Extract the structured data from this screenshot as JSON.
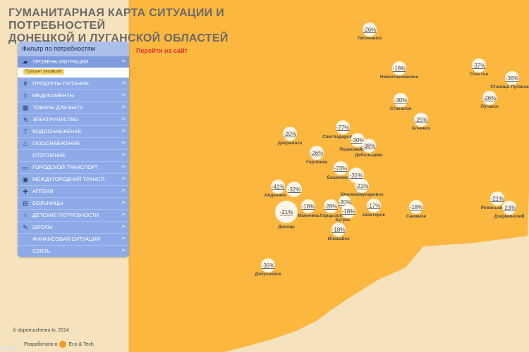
{
  "title": {
    "line1": "ГУМАНИТАРНАЯ КАРТА СИТУАЦИИ И ПОТРЕБНОСТЕЙ",
    "line2": "ДОНЕЦКОЙ И ЛУГАНСКОЙ ОБЛАСТЕЙ"
  },
  "goto_site": "Перейти на сайт",
  "filter": {
    "header": "Фильтр по потребностям",
    "selected_chip": "Процент уехавших",
    "items": [
      {
        "label": "УРОВЕНЬ МИГРАЦИИ",
        "icon": "suitcase-icon",
        "glyph": "▰"
      },
      {
        "label": "ПРОДУКТЫ ПИТАНИЯ",
        "icon": "food-icon",
        "glyph": "⚱"
      },
      {
        "label": "МЕДИКАМЕНТЫ",
        "icon": "medicine-icon",
        "glyph": "⚕"
      },
      {
        "label": "ТОВАРЫ ДЛЯ БЫТА",
        "icon": "household-icon",
        "glyph": "▦"
      },
      {
        "label": "ЭЛЕКТРИЧЕСТВО",
        "icon": "electricity-icon",
        "glyph": "ϟ"
      },
      {
        "label": "ВОДОСНАБЖЕНИЕ",
        "icon": "water-tap-icon",
        "glyph": "⊤"
      },
      {
        "label": "ГАЗОСНАБЖЕНИЕ",
        "icon": "gas-flame-icon",
        "glyph": "♨"
      },
      {
        "label": "ОТОПЛЕНИЕ",
        "icon": "heating-icon",
        "glyph": ""
      },
      {
        "label": "ГОРОДСКОЙ ТРАНСПОРТ",
        "icon": "city-bus-icon",
        "glyph": "▭"
      },
      {
        "label": "МЕЖДУГОРОДНИЙ ТРАНСП.",
        "icon": "intercity-bus-icon",
        "glyph": "▣"
      },
      {
        "label": "АПТЕКИ",
        "icon": "pharmacy-icon",
        "glyph": "✚"
      },
      {
        "label": "БОЛЬНИЦЫ",
        "icon": "hospital-icon",
        "glyph": "⊞"
      },
      {
        "label": "ДЕТСКИЕ ПОТРЕБНОСТИ",
        "icon": "children-icon",
        "glyph": "♀"
      },
      {
        "label": "ШКОЛЫ",
        "icon": "school-icon",
        "glyph": "✎"
      },
      {
        "label": "ФИНАНСОВАЯ СИТУАЦИЯ",
        "icon": "finance-icon",
        "glyph": ""
      },
      {
        "label": "СВЯЗЬ",
        "icon": "communication-icon",
        "glyph": ""
      }
    ]
  },
  "colors": {
    "region": "#fcb73e",
    "background": "#f6e3bd",
    "panel": "#8eaae8",
    "label": "#4a4a4a"
  },
  "markers": [
    {
      "value": "-26%",
      "city": "Лисичанск"
    },
    {
      "value": "-18%",
      "city": "Новотошковское"
    },
    {
      "value": "-37%",
      "city": "Счастье"
    },
    {
      "value": "-36%",
      "city": "Станица Луганская"
    },
    {
      "value": "-26%",
      "city": "Луганск"
    },
    {
      "value": "-30%",
      "city": "Стаханов"
    },
    {
      "value": "-25%",
      "city": "Алчевск"
    },
    {
      "value": "-20%",
      "city": "Дзержинск"
    },
    {
      "value": "-27%",
      "city": "Светлодарск"
    },
    {
      "value": "-30%",
      "city": "Первомайск"
    },
    {
      "value": "-38%",
      "city": "Дебальцево"
    },
    {
      "value": "-26%",
      "city": "Горловка"
    },
    {
      "value": "-23%",
      "city": "Енакиево"
    },
    {
      "value": "-31%",
      "city": ""
    },
    {
      "value": "-21%",
      "city": "Юнокоммунаровск"
    },
    {
      "value": "-41%",
      "city": "Авдеевка"
    },
    {
      "value": "-32%",
      "city": ""
    },
    {
      "value": "-21%",
      "city": "Донецк"
    },
    {
      "value": "-18%",
      "city": "Макеевка"
    },
    {
      "value": "-28%",
      "city": "Харцызск"
    },
    {
      "value": "-20%",
      "city": ""
    },
    {
      "value": "-18%",
      "city": "Зугрэс"
    },
    {
      "value": "-17%",
      "city": "Шахтерск"
    },
    {
      "value": "-18%",
      "city": "Снежное"
    },
    {
      "value": "-18%",
      "city": "Иловайск"
    },
    {
      "value": "-36%",
      "city": "Докучаевск"
    },
    {
      "value": "-21%",
      "city": "Ровеньки"
    },
    {
      "value": "-23%",
      "city": "Дзержинский"
    }
  ],
  "footer": {
    "copyright": "© dopomozhemo.tv, 2014",
    "developed_by": "Разработано в",
    "developer": "Eco & Tech",
    "google": "Google"
  }
}
